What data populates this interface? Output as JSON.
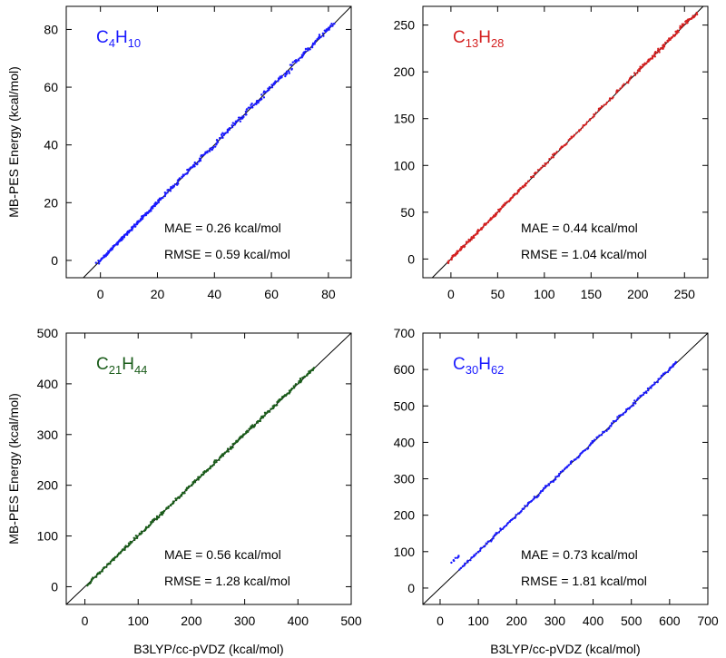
{
  "chart_data": [
    {
      "type": "scatter",
      "molecule": {
        "base1": "C",
        "sub1": "4",
        "base2": "H",
        "sub2": "10"
      },
      "color": "#1a1aff",
      "xlim": [
        -12,
        88
      ],
      "ylim": [
        -6,
        88
      ],
      "xticks": [
        0,
        20,
        40,
        60,
        80
      ],
      "yticks": [
        0,
        20,
        40,
        60,
        80
      ],
      "xlabel": "",
      "ylabel": "MB-PES Energy (kcal/mol)",
      "mae": "MAE = 0.26 kcal/mol",
      "rmse": "RMSE = 0.59 kcal/mol",
      "series": [
        {
          "name": "C4H10",
          "x": [
            0,
            1,
            2,
            3,
            4,
            5,
            6,
            7,
            8,
            9,
            10,
            11,
            12,
            13,
            14,
            15,
            16,
            17,
            18,
            19,
            20,
            22,
            24,
            26,
            28,
            30,
            32,
            34,
            36,
            38,
            40,
            42,
            44,
            46,
            48,
            50,
            52,
            54,
            56,
            58,
            60,
            62,
            64,
            66,
            68,
            70,
            72,
            74,
            76,
            78,
            80,
            81
          ],
          "y": [
            0,
            1,
            2.1,
            3,
            4,
            5,
            6.1,
            7,
            8,
            9.1,
            10,
            11,
            12,
            13.1,
            14,
            15.3,
            16,
            17,
            17.9,
            19.2,
            20.4,
            22,
            24.5,
            25.6,
            28.4,
            30,
            32.6,
            33.6,
            36.5,
            38,
            39.5,
            42.6,
            44,
            46.2,
            48.5,
            49.6,
            52.8,
            54,
            55.3,
            58.6,
            60.2,
            62.4,
            64,
            65.2,
            68.7,
            70,
            72.5,
            73.8,
            76.6,
            78,
            80.5,
            81
          ]
        }
      ]
    },
    {
      "type": "scatter",
      "molecule": {
        "base1": "C",
        "sub1": "13",
        "base2": "H",
        "sub2": "28"
      },
      "color": "#d42020",
      "xlim": [
        -30,
        275
      ],
      "ylim": [
        -20,
        270
      ],
      "xticks": [
        0,
        50,
        100,
        150,
        200,
        250
      ],
      "yticks": [
        0,
        50,
        100,
        150,
        200,
        250
      ],
      "xlabel": "",
      "ylabel": "",
      "mae": "MAE = 0.44 kcal/mol",
      "rmse": "RMSE = 1.04 kcal/mol",
      "series": [
        {
          "name": "C13H28",
          "x": [
            0,
            4,
            8,
            12,
            16,
            20,
            25,
            30,
            35,
            40,
            45,
            50,
            55,
            60,
            65,
            70,
            75,
            80,
            90,
            100,
            110,
            120,
            130,
            140,
            150,
            160,
            170,
            180,
            190,
            200,
            205,
            210,
            215,
            220,
            225,
            230,
            235,
            240,
            245,
            250,
            255,
            260
          ],
          "y": [
            0,
            4,
            8.2,
            12,
            16.1,
            20,
            25.3,
            30,
            35.2,
            40.4,
            45,
            50.1,
            55.5,
            60,
            65.3,
            70,
            75.6,
            80.2,
            90.4,
            100,
            110.5,
            120.3,
            130,
            140.6,
            150.2,
            160.8,
            170,
            180.9,
            190.3,
            201,
            205.5,
            211.2,
            214,
            221.5,
            224.2,
            231,
            236.4,
            239.5,
            246,
            251.6,
            255,
            259.7
          ]
        }
      ]
    },
    {
      "type": "scatter",
      "molecule": {
        "base1": "C",
        "sub1": "21",
        "base2": "H",
        "sub2": "44"
      },
      "color": "#1a5c1a",
      "xlim": [
        -35,
        500
      ],
      "ylim": [
        -35,
        500
      ],
      "xticks": [
        0,
        100,
        200,
        300,
        400,
        500
      ],
      "yticks": [
        0,
        100,
        200,
        300,
        400,
        500
      ],
      "xlabel": "B3LYP/cc-pVDZ (kcal/mol)",
      "ylabel": "MB-PES Energy (kcal/mol)",
      "mae": "MAE = 0.56 kcal/mol",
      "rmse": "RMSE = 1.28 kcal/mol",
      "series": [
        {
          "name": "C21H44",
          "x": [
            10,
            20,
            30,
            40,
            50,
            60,
            70,
            80,
            90,
            100,
            110,
            120,
            130,
            140,
            150,
            160,
            170,
            180,
            190,
            200,
            210,
            220,
            230,
            240,
            250,
            260,
            270,
            280,
            290,
            300,
            310,
            320,
            330,
            340,
            350,
            360,
            370,
            380,
            390,
            400,
            410,
            420,
            425
          ],
          "y": [
            10,
            20.5,
            30,
            40.6,
            50,
            60.7,
            70,
            80.5,
            90,
            100.8,
            110.2,
            120,
            130.9,
            140.3,
            150,
            160.9,
            170.4,
            180,
            191.1,
            200.2,
            210,
            221,
            230.5,
            240,
            251.4,
            260.6,
            270,
            281.5,
            290.3,
            300.6,
            311.8,
            320.2,
            330,
            341.6,
            350.5,
            360,
            371.2,
            380.4,
            390,
            401.8,
            410.2,
            421,
            426
          ]
        }
      ]
    },
    {
      "type": "scatter",
      "molecule": {
        "base1": "C",
        "sub1": "30",
        "base2": "H",
        "sub2": "62"
      },
      "color": "#1a1aff",
      "xlim": [
        -45,
        700
      ],
      "ylim": [
        -45,
        700
      ],
      "xticks": [
        0,
        100,
        200,
        300,
        400,
        500,
        600,
        700
      ],
      "yticks": [
        0,
        100,
        200,
        300,
        400,
        500,
        600,
        700
      ],
      "xlabel": "B3LYP/cc-pVDZ (kcal/mol)",
      "ylabel": "",
      "mae": "MAE = 0.73 kcal/mol",
      "rmse": "RMSE = 1.81 kcal/mol",
      "series": [
        {
          "name": "C30H62",
          "x": [
            40,
            60,
            80,
            100,
            120,
            140,
            160,
            180,
            200,
            220,
            240,
            260,
            280,
            300,
            320,
            340,
            360,
            380,
            400,
            420,
            440,
            460,
            480,
            500,
            520,
            540,
            560,
            580,
            600,
            610
          ],
          "y": [
            80,
            62,
            81,
            101,
            120.5,
            140,
            161,
            180.4,
            200,
            221,
            240.6,
            260,
            281.2,
            300.5,
            320,
            341.5,
            360.8,
            380,
            401.4,
            420.6,
            440,
            461.8,
            480.5,
            500,
            521.6,
            540.7,
            560,
            581.2,
            600.5,
            612
          ]
        }
      ]
    }
  ]
}
